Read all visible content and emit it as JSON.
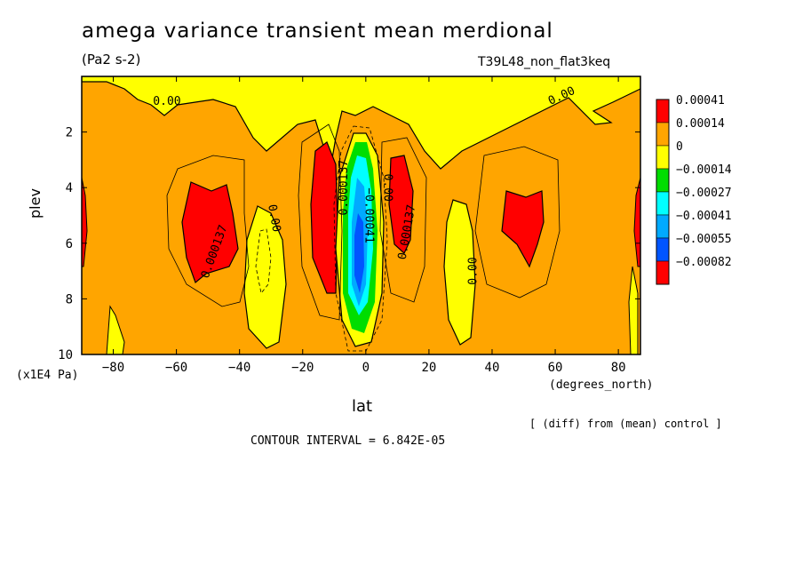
{
  "header": {
    "title": "amega variance transient mean merdional",
    "units": "(Pa2 s-2)",
    "experiment": "T39L48_non_flat3keq"
  },
  "footer": {
    "y_units": "(x1E4 Pa)",
    "x_units": "(degrees_north)",
    "diff_note": "[ (diff) from (mean) control ]",
    "contour_interval": "CONTOUR INTERVAL = 6.842E-05"
  },
  "chart_data": {
    "type": "heatmap",
    "title": "amega variance transient mean merdional",
    "xlabel": "lat",
    "ylabel": "plev",
    "xlim": [
      -90,
      87
    ],
    "ylim": [
      0,
      10
    ],
    "y_inverted": true,
    "x_ticks": [
      -80,
      -60,
      -40,
      -20,
      0,
      20,
      40,
      60,
      80
    ],
    "y_ticks": [
      2,
      4,
      6,
      8,
      10
    ],
    "legend": {
      "placement": "right",
      "labels": [
        "0.00041",
        "0.00014",
        "0",
        "-0.00014",
        "-0.00027",
        "-0.00041",
        "-0.00055",
        "-0.00082"
      ],
      "colors": [
        "#ff0000",
        "#ffa500",
        "#ffff00",
        "#00dd00",
        "#00ffff",
        "#00aaff",
        "#0055ff",
        "#ff0000"
      ]
    },
    "contour_labels": [
      {
        "text": "0.00",
        "lat": -63,
        "plev": 0.9,
        "angle": 0
      },
      {
        "text": "0.00",
        "lat": 62,
        "plev": 0.7,
        "angle": -25
      },
      {
        "text": "0.000137",
        "lat": -48,
        "plev": 6.3,
        "angle": -70
      },
      {
        "text": "0.00",
        "lat": -29,
        "plev": 5.1,
        "angle": 80
      },
      {
        "text": "0.000137",
        "lat": -7,
        "plev": 4.0,
        "angle": -90
      },
      {
        "text": "0.00",
        "lat": 7,
        "plev": 4.0,
        "angle": 90
      },
      {
        "text": "-0.00041",
        "lat": 1,
        "plev": 5.0,
        "angle": 90
      },
      {
        "text": "0.000137",
        "lat": 13,
        "plev": 5.6,
        "angle": -80
      },
      {
        "text": "0.00",
        "lat": 34,
        "plev": 7.0,
        "angle": -90
      }
    ],
    "features": [
      {
        "name": "south-max-1",
        "lat": -50,
        "plev": 5.8,
        "level": "0.00041"
      },
      {
        "name": "south-max-2",
        "lat": -10,
        "plev": 4.5,
        "level": "0.00041"
      },
      {
        "name": "north-max-1",
        "lat": 12,
        "plev": 4.8,
        "level": "0.00041"
      },
      {
        "name": "north-max-2",
        "lat": 52,
        "plev": 5.3,
        "level": "0.00041"
      },
      {
        "name": "equatorial-min",
        "lat": 0,
        "plev": 6.2,
        "level": "-0.00082"
      }
    ]
  }
}
